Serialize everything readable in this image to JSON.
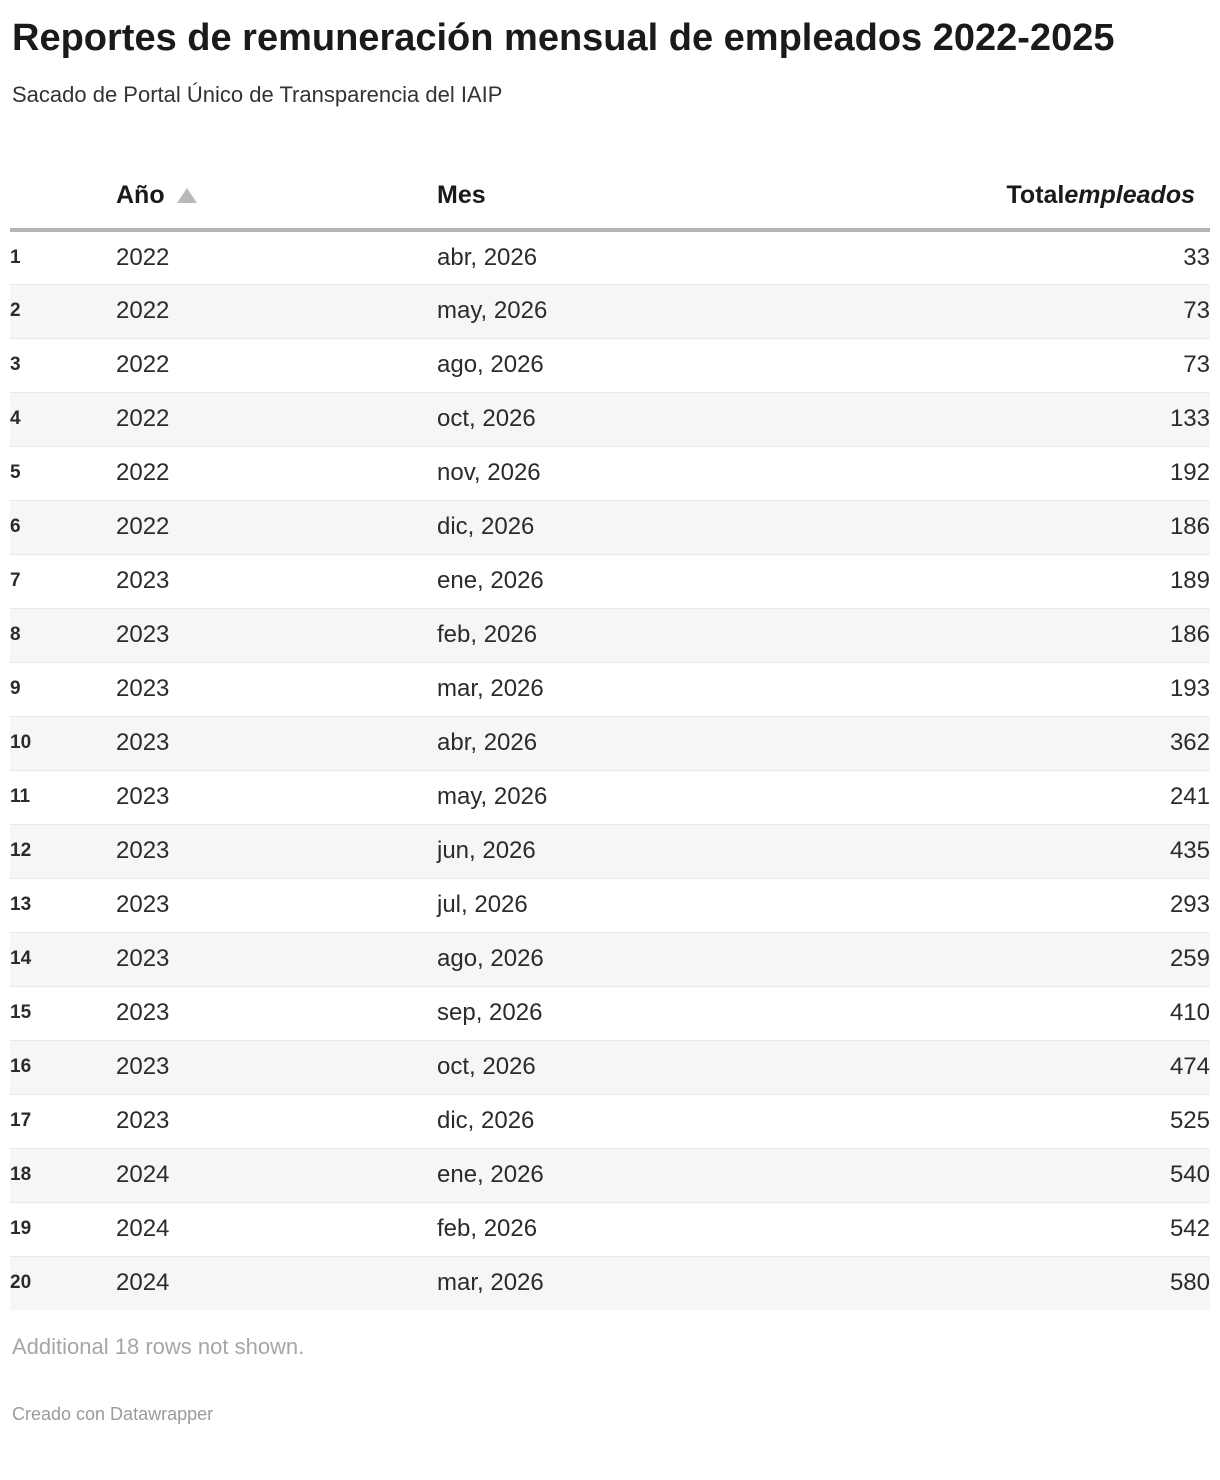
{
  "header": {
    "title": "Reportes de remuneración mensual de empleados 2022-2025",
    "subtitle": "Sacado de Portal Único de Transparencia del IAIP"
  },
  "table": {
    "columns": {
      "year_label": "Año",
      "month_label": "Mes",
      "total_label_prefix": "Total",
      "total_label_suffix": "empleados"
    },
    "sort": {
      "column": "Año",
      "direction": "ascending",
      "icon": "sort-ascending-triangle"
    },
    "rows": [
      {
        "n": "1",
        "year": "2022",
        "month": "abr, 2026",
        "total": "33"
      },
      {
        "n": "2",
        "year": "2022",
        "month": "may, 2026",
        "total": "73"
      },
      {
        "n": "3",
        "year": "2022",
        "month": "ago, 2026",
        "total": "73"
      },
      {
        "n": "4",
        "year": "2022",
        "month": "oct, 2026",
        "total": "133"
      },
      {
        "n": "5",
        "year": "2022",
        "month": "nov, 2026",
        "total": "192"
      },
      {
        "n": "6",
        "year": "2022",
        "month": "dic, 2026",
        "total": "186"
      },
      {
        "n": "7",
        "year": "2023",
        "month": "ene, 2026",
        "total": "189"
      },
      {
        "n": "8",
        "year": "2023",
        "month": "feb, 2026",
        "total": "186"
      },
      {
        "n": "9",
        "year": "2023",
        "month": "mar, 2026",
        "total": "193"
      },
      {
        "n": "10",
        "year": "2023",
        "month": "abr, 2026",
        "total": "362"
      },
      {
        "n": "11",
        "year": "2023",
        "month": "may, 2026",
        "total": "241"
      },
      {
        "n": "12",
        "year": "2023",
        "month": "jun, 2026",
        "total": "435"
      },
      {
        "n": "13",
        "year": "2023",
        "month": "jul, 2026",
        "total": "293"
      },
      {
        "n": "14",
        "year": "2023",
        "month": "ago, 2026",
        "total": "259"
      },
      {
        "n": "15",
        "year": "2023",
        "month": "sep, 2026",
        "total": "410"
      },
      {
        "n": "16",
        "year": "2023",
        "month": "oct, 2026",
        "total": "474"
      },
      {
        "n": "17",
        "year": "2023",
        "month": "dic, 2026",
        "total": "525"
      },
      {
        "n": "18",
        "year": "2024",
        "month": "ene, 2026",
        "total": "540"
      },
      {
        "n": "19",
        "year": "2024",
        "month": "feb, 2026",
        "total": "542"
      },
      {
        "n": "20",
        "year": "2024",
        "month": "mar, 2026",
        "total": "580"
      }
    ]
  },
  "footer": {
    "more_rows_note": "Additional 18 rows not shown.",
    "credit": "Creado con Datawrapper"
  },
  "colors": {
    "title_text": "#1a1a1c",
    "body_text": "#2b2b2e",
    "stripe_background": "#f6f6f6",
    "row_divider": "#e8e8e8",
    "header_border": "#b5b5b5",
    "sort_icon": "#b9b9b9",
    "muted_text": "#a6a6a6"
  }
}
